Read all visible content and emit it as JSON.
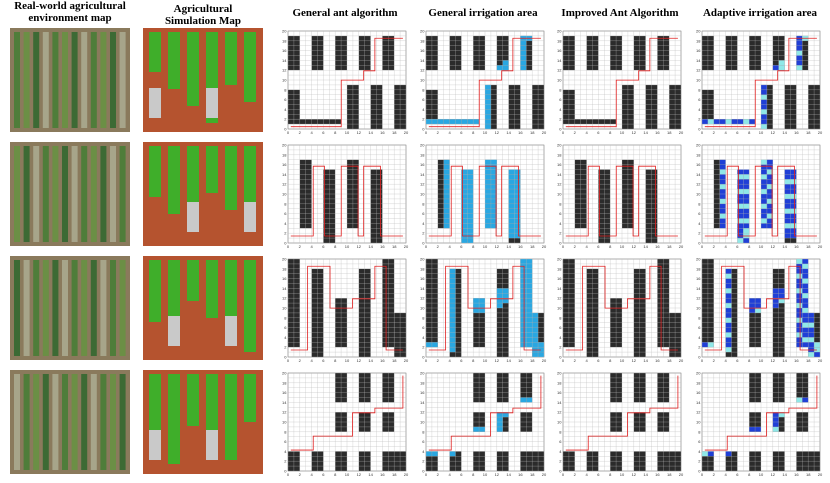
{
  "headers": [
    [
      "Real-world agricultural",
      "environment map"
    ],
    [
      "Agricultural",
      "Simulation Map"
    ],
    [
      "General ant algorithm"
    ],
    [
      "General irrigation area"
    ],
    [
      "Improved Ant Algorithm"
    ],
    [
      "Adaptive irrigation area"
    ]
  ],
  "axis_ticks": [
    0,
    2,
    4,
    6,
    8,
    10,
    12,
    14,
    16,
    18,
    20
  ]
}
